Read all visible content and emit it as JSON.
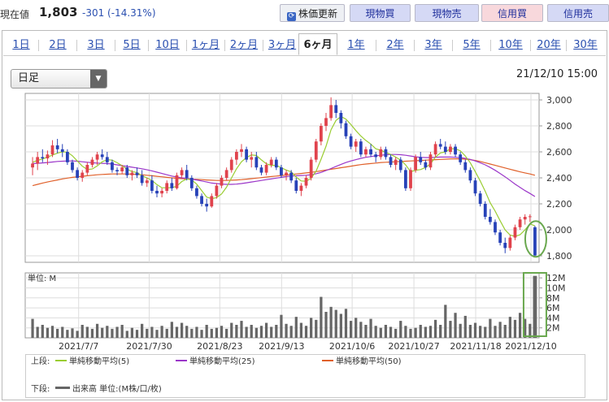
{
  "header": {
    "price_label": "現在値",
    "price": "1,803",
    "change": "-301 (-14.31%)",
    "buttons": {
      "update": "株価更新",
      "update_icon": "refresh-icon",
      "genbuy": "現物買",
      "gensell": "現物売",
      "shinbuy": "信用買",
      "shinsell": "信用売"
    }
  },
  "tabs": [
    {
      "label": "1日"
    },
    {
      "label": "2日"
    },
    {
      "label": "3日"
    },
    {
      "label": "5日"
    },
    {
      "label": "10日"
    },
    {
      "label": "1ヶ月"
    },
    {
      "label": "2ヶ月"
    },
    {
      "label": "3ヶ月"
    },
    {
      "label": "6ヶ月",
      "active": true
    },
    {
      "label": "1年"
    },
    {
      "label": "2年"
    },
    {
      "label": "3年"
    },
    {
      "label": "5年"
    },
    {
      "label": "10年"
    },
    {
      "label": "20年"
    },
    {
      "label": "30年"
    }
  ],
  "chart_controls": {
    "interval": "日足",
    "datetime": "21/12/10 15:00"
  },
  "colors": {
    "up": "#e0434d",
    "down": "#2742b8",
    "ma5": "#9acd32",
    "ma25": "#9b36c9",
    "ma50": "#e0602a",
    "volume": "#666666",
    "highlight": "#6aa84f"
  },
  "chart_data": {
    "type": "candlestick",
    "x_tick_labels": [
      "2021/7/7",
      "2021/7/30",
      "2021/8/23",
      "2021/9/13",
      "2021/10/6",
      "2021/10/27",
      "2021/11/18",
      "2021/12/10"
    ],
    "price_axis": {
      "min": 1750,
      "max": 3050,
      "ticks": [
        "3,000",
        "2,800",
        "2,600",
        "2,400",
        "2,200",
        "2,000",
        "1,800"
      ]
    },
    "volume_axis": {
      "unit_label": "単位: M",
      "max": 13,
      "ticks": [
        "12M",
        "10M",
        "8M",
        "6M",
        "4M",
        "2M"
      ]
    },
    "ohlc": [
      [
        2480,
        2560,
        2420,
        2510
      ],
      [
        2510,
        2600,
        2460,
        2560
      ],
      [
        2560,
        2620,
        2520,
        2550
      ],
      [
        2550,
        2610,
        2500,
        2580
      ],
      [
        2580,
        2690,
        2560,
        2650
      ],
      [
        2650,
        2700,
        2590,
        2620
      ],
      [
        2620,
        2660,
        2560,
        2600
      ],
      [
        2600,
        2620,
        2500,
        2520
      ],
      [
        2520,
        2540,
        2440,
        2460
      ],
      [
        2460,
        2480,
        2380,
        2400
      ],
      [
        2400,
        2460,
        2370,
        2440
      ],
      [
        2440,
        2520,
        2420,
        2500
      ],
      [
        2500,
        2560,
        2480,
        2540
      ],
      [
        2540,
        2600,
        2500,
        2580
      ],
      [
        2580,
        2620,
        2540,
        2560
      ],
      [
        2560,
        2600,
        2500,
        2520
      ],
      [
        2520,
        2540,
        2440,
        2460
      ],
      [
        2460,
        2480,
        2420,
        2450
      ],
      [
        2450,
        2500,
        2430,
        2480
      ],
      [
        2480,
        2500,
        2400,
        2420
      ],
      [
        2420,
        2460,
        2380,
        2440
      ],
      [
        2440,
        2480,
        2400,
        2420
      ],
      [
        2420,
        2460,
        2340,
        2360
      ],
      [
        2360,
        2400,
        2330,
        2380
      ],
      [
        2380,
        2420,
        2280,
        2300
      ],
      [
        2300,
        2340,
        2250,
        2280
      ],
      [
        2280,
        2320,
        2250,
        2300
      ],
      [
        2300,
        2380,
        2280,
        2360
      ],
      [
        2360,
        2400,
        2300,
        2320
      ],
      [
        2320,
        2440,
        2310,
        2420
      ],
      [
        2420,
        2480,
        2400,
        2460
      ],
      [
        2460,
        2500,
        2380,
        2400
      ],
      [
        2400,
        2420,
        2300,
        2320
      ],
      [
        2320,
        2340,
        2240,
        2260
      ],
      [
        2260,
        2280,
        2180,
        2200
      ],
      [
        2200,
        2240,
        2140,
        2180
      ],
      [
        2180,
        2280,
        2170,
        2260
      ],
      [
        2260,
        2360,
        2240,
        2340
      ],
      [
        2340,
        2420,
        2320,
        2400
      ],
      [
        2400,
        2480,
        2380,
        2460
      ],
      [
        2460,
        2560,
        2440,
        2540
      ],
      [
        2540,
        2620,
        2500,
        2600
      ],
      [
        2600,
        2660,
        2560,
        2620
      ],
      [
        2620,
        2640,
        2520,
        2540
      ],
      [
        2540,
        2600,
        2480,
        2560
      ],
      [
        2560,
        2600,
        2460,
        2480
      ],
      [
        2480,
        2500,
        2420,
        2440
      ],
      [
        2440,
        2520,
        2420,
        2500
      ],
      [
        2500,
        2560,
        2480,
        2540
      ],
      [
        2540,
        2560,
        2460,
        2480
      ],
      [
        2480,
        2500,
        2400,
        2420
      ],
      [
        2420,
        2460,
        2380,
        2440
      ],
      [
        2440,
        2460,
        2360,
        2380
      ],
      [
        2380,
        2400,
        2280,
        2300
      ],
      [
        2300,
        2360,
        2260,
        2340
      ],
      [
        2340,
        2420,
        2320,
        2400
      ],
      [
        2400,
        2560,
        2380,
        2540
      ],
      [
        2540,
        2700,
        2520,
        2680
      ],
      [
        2680,
        2820,
        2650,
        2800
      ],
      [
        2800,
        2900,
        2760,
        2860
      ],
      [
        2860,
        3020,
        2840,
        2960
      ],
      [
        2960,
        3000,
        2860,
        2900
      ],
      [
        2900,
        2920,
        2780,
        2820
      ],
      [
        2820,
        2840,
        2700,
        2720
      ],
      [
        2720,
        2740,
        2620,
        2640
      ],
      [
        2640,
        2700,
        2600,
        2680
      ],
      [
        2680,
        2700,
        2560,
        2580
      ],
      [
        2580,
        2640,
        2560,
        2620
      ],
      [
        2620,
        2660,
        2560,
        2580
      ],
      [
        2580,
        2600,
        2520,
        2560
      ],
      [
        2560,
        2640,
        2540,
        2620
      ],
      [
        2620,
        2640,
        2540,
        2560
      ],
      [
        2560,
        2580,
        2480,
        2500
      ],
      [
        2500,
        2560,
        2460,
        2540
      ],
      [
        2540,
        2560,
        2440,
        2460
      ],
      [
        2460,
        2480,
        2300,
        2320
      ],
      [
        2320,
        2480,
        2300,
        2460
      ],
      [
        2460,
        2580,
        2440,
        2560
      ],
      [
        2560,
        2600,
        2500,
        2520
      ],
      [
        2520,
        2540,
        2460,
        2480
      ],
      [
        2480,
        2600,
        2460,
        2580
      ],
      [
        2580,
        2680,
        2560,
        2660
      ],
      [
        2660,
        2700,
        2620,
        2640
      ],
      [
        2640,
        2680,
        2580,
        2600
      ],
      [
        2600,
        2660,
        2580,
        2640
      ],
      [
        2640,
        2660,
        2560,
        2580
      ],
      [
        2580,
        2600,
        2500,
        2520
      ],
      [
        2520,
        2540,
        2440,
        2460
      ],
      [
        2460,
        2480,
        2360,
        2380
      ],
      [
        2380,
        2400,
        2260,
        2280
      ],
      [
        2280,
        2300,
        2180,
        2200
      ],
      [
        2200,
        2220,
        2080,
        2100
      ],
      [
        2100,
        2160,
        2040,
        2060
      ],
      [
        2060,
        2080,
        1960,
        1980
      ],
      [
        1980,
        2000,
        1880,
        1900
      ],
      [
        1900,
        1940,
        1820,
        1860
      ],
      [
        1860,
        1960,
        1840,
        1940
      ],
      [
        1940,
        2040,
        1920,
        2020
      ],
      [
        2020,
        2100,
        2000,
        2080
      ],
      [
        2080,
        2120,
        2040,
        2100
      ],
      [
        2100,
        2120,
        2060,
        2104
      ],
      [
        2020,
        2030,
        1790,
        1803
      ]
    ],
    "ma5": [
      2520,
      2535,
      2545,
      2560,
      2575,
      2590,
      2600,
      2598,
      2570,
      2530,
      2490,
      2464,
      2468,
      2492,
      2524,
      2540,
      2536,
      2516,
      2494,
      2466,
      2448,
      2442,
      2416,
      2400,
      2380,
      2348,
      2324,
      2324,
      2324,
      2336,
      2372,
      2392,
      2384,
      2352,
      2302,
      2252,
      2240,
      2248,
      2276,
      2328,
      2400,
      2470,
      2524,
      2556,
      2576,
      2572,
      2538,
      2508,
      2496,
      2496,
      2478,
      2460,
      2446,
      2406,
      2376,
      2374,
      2396,
      2452,
      2544,
      2644,
      2770,
      2842,
      2872,
      2852,
      2810,
      2764,
      2722,
      2688,
      2660,
      2624,
      2612,
      2596,
      2580,
      2560,
      2536,
      2500,
      2448,
      2458,
      2464,
      2480,
      2508,
      2560,
      2592,
      2600,
      2624,
      2624,
      2608,
      2568,
      2516,
      2448,
      2376,
      2296,
      2208,
      2144,
      2070,
      2000,
      1960,
      1950,
      1962,
      2000,
      2046,
      2030
    ],
    "ma25": [
      2510,
      2512,
      2515,
      2518,
      2522,
      2526,
      2528,
      2530,
      2530,
      2528,
      2524,
      2520,
      2516,
      2514,
      2512,
      2510,
      2506,
      2500,
      2494,
      2488,
      2482,
      2476,
      2470,
      2462,
      2454,
      2444,
      2434,
      2424,
      2414,
      2406,
      2400,
      2396,
      2390,
      2384,
      2376,
      2368,
      2360,
      2356,
      2352,
      2350,
      2350,
      2352,
      2356,
      2362,
      2368,
      2374,
      2380,
      2386,
      2392,
      2398,
      2404,
      2410,
      2414,
      2416,
      2418,
      2420,
      2424,
      2432,
      2442,
      2456,
      2472,
      2488,
      2504,
      2518,
      2530,
      2540,
      2550,
      2558,
      2564,
      2570,
      2574,
      2578,
      2580,
      2580,
      2578,
      2574,
      2568,
      2562,
      2558,
      2556,
      2556,
      2558,
      2560,
      2560,
      2560,
      2558,
      2556,
      2550,
      2542,
      2530,
      2516,
      2500,
      2480,
      2458,
      2434,
      2408,
      2380,
      2352,
      2326,
      2302,
      2280,
      2256
    ],
    "ma50": [
      2340,
      2350,
      2360,
      2368,
      2376,
      2384,
      2392,
      2398,
      2404,
      2408,
      2412,
      2416,
      2420,
      2424,
      2426,
      2428,
      2430,
      2430,
      2430,
      2430,
      2428,
      2426,
      2424,
      2420,
      2416,
      2412,
      2408,
      2404,
      2400,
      2396,
      2394,
      2392,
      2390,
      2388,
      2386,
      2384,
      2382,
      2380,
      2380,
      2380,
      2382,
      2384,
      2386,
      2390,
      2394,
      2398,
      2402,
      2406,
      2410,
      2414,
      2418,
      2422,
      2426,
      2430,
      2434,
      2438,
      2442,
      2448,
      2454,
      2460,
      2466,
      2472,
      2478,
      2484,
      2490,
      2496,
      2502,
      2506,
      2510,
      2514,
      2518,
      2520,
      2522,
      2524,
      2526,
      2528,
      2530,
      2532,
      2534,
      2536,
      2538,
      2540,
      2542,
      2544,
      2546,
      2546,
      2546,
      2544,
      2540,
      2534,
      2526,
      2516,
      2506,
      2496,
      2486,
      2476,
      2466,
      2456,
      2446,
      2438,
      2430,
      2420
    ],
    "volume": [
      3.8,
      2.2,
      2.6,
      2.0,
      2.4,
      1.8,
      2.2,
      1.6,
      1.9,
      1.4,
      2.6,
      2.2,
      1.8,
      2.8,
      2.0,
      2.4,
      1.8,
      2.2,
      2.6,
      1.4,
      2.0,
      1.6,
      2.8,
      1.8,
      2.2,
      1.6,
      2.4,
      1.8,
      3.2,
      2.2,
      3.0,
      2.4,
      1.8,
      2.2,
      1.6,
      2.6,
      1.8,
      2.0,
      2.4,
      1.8,
      3.0,
      2.6,
      3.4,
      2.2,
      2.6,
      2.0,
      2.4,
      3.0,
      2.2,
      2.6,
      4.6,
      2.8,
      2.4,
      4.2,
      3.0,
      2.4,
      4.0,
      3.6,
      8.2,
      5.2,
      6.2,
      5.6,
      4.8,
      5.8,
      3.4,
      4.0,
      3.2,
      2.6,
      3.8,
      2.4,
      2.0,
      2.6,
      2.2,
      1.8,
      3.4,
      2.4,
      1.8,
      2.0,
      2.6,
      2.2,
      2.4,
      3.6,
      2.6,
      6.6,
      3.4,
      5.0,
      2.8,
      4.4,
      2.6,
      3.0,
      2.4,
      2.2,
      3.8,
      2.4,
      3.2,
      2.6,
      4.2,
      3.6,
      5.0,
      3.8,
      2.8,
      12.4
    ],
    "annotations": [
      "last-candle-circle",
      "last-volume-box"
    ]
  },
  "legend": {
    "upper_label": "上段:",
    "lower_label": "下段:",
    "ma5": "単純移動平均(5)",
    "ma25": "単純移動平均(25)",
    "ma50": "単純移動平均(50)",
    "volume": "出来高 単位:(M株/口/枚)"
  }
}
